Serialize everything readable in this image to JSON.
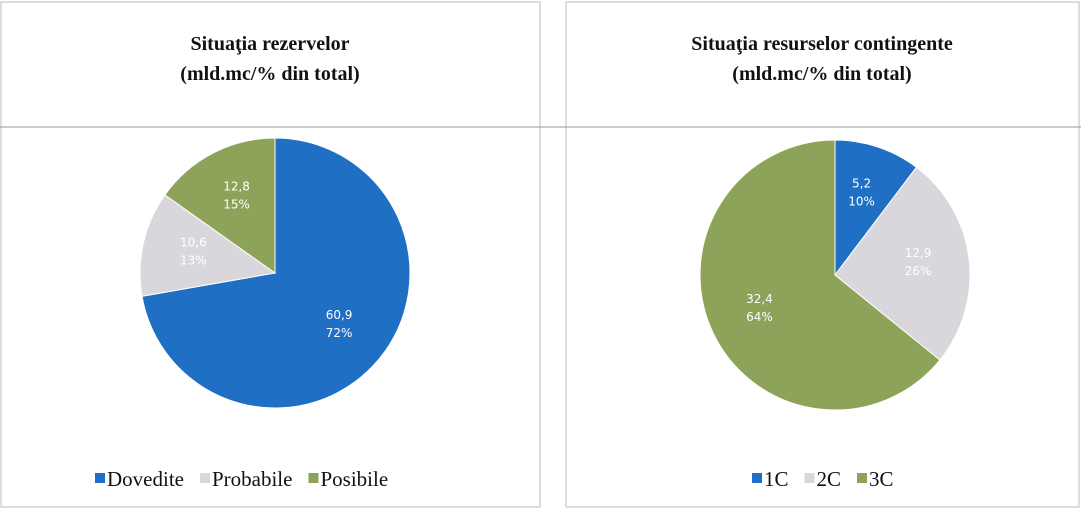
{
  "chart_data": [
    {
      "type": "pie",
      "title": "Situaţia rezervelor",
      "subtitle": "(mld.mc/% din total)",
      "categories": [
        "Dovedite",
        "Probabile",
        "Posibile"
      ],
      "values": [
        60.9,
        10.6,
        12.8
      ],
      "value_labels": [
        "60,9",
        "10,6",
        "12,8"
      ],
      "percent_labels": [
        "72%",
        "13%",
        "15%"
      ],
      "colors": [
        "#1f6fc5",
        "#d9d6dc",
        "#8ea35a"
      ]
    },
    {
      "type": "pie",
      "title": "Situaţia resurselor contingente",
      "subtitle": "(mld.mc/% din total)",
      "categories": [
        "1C",
        "2C",
        "3C"
      ],
      "values": [
        5.2,
        12.9,
        32.4
      ],
      "value_labels": [
        "5,2",
        "12,9",
        "32,4"
      ],
      "percent_labels": [
        "10%",
        "26%",
        "64%"
      ],
      "colors": [
        "#1f6fc5",
        "#d9d6dc",
        "#8ea35a"
      ]
    }
  ]
}
